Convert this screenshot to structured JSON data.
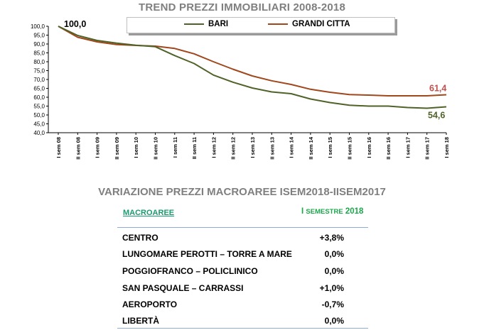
{
  "chart_data": {
    "type": "line",
    "title": "TREND PREZZI IMMOBILIARI 2008-2018",
    "categories": [
      "I sem 08",
      "II sem 08",
      "I sem 09",
      "II sem 09",
      "I sem 10",
      "II sem 10",
      "I sem 11",
      "II sem 11",
      "I sem 12",
      "II sem 12",
      "I sem 13",
      "II sem 13",
      "I sem 14",
      "II sem 14",
      "I sem 15",
      "II sem 15",
      "I sem 16",
      "II sem 16",
      "I sem 17",
      "II sem 17",
      "I sem 18"
    ],
    "series": [
      {
        "name": "BARI",
        "color": "#4f6228",
        "values": [
          100.0,
          94.8,
          92.0,
          90.5,
          89.3,
          88.5,
          83.5,
          79.0,
          72.5,
          68.5,
          65.2,
          63.0,
          62.0,
          59.0,
          57.0,
          55.5,
          55.0,
          55.0,
          54.2,
          53.8,
          54.6
        ]
      },
      {
        "name": "GRANDI CITTA",
        "color": "#a0471c",
        "values": [
          100.0,
          93.8,
          91.2,
          89.7,
          89.2,
          88.8,
          87.5,
          84.5,
          80.0,
          75.8,
          72.0,
          69.3,
          67.2,
          64.5,
          62.8,
          61.5,
          61.2,
          60.8,
          60.8,
          60.8,
          61.4
        ]
      }
    ],
    "ylim": [
      40.0,
      100.0
    ],
    "yticks": [
      "100,0",
      "95,0",
      "90,0",
      "85,0",
      "80,0",
      "75,0",
      "70,0",
      "65,0",
      "60,0",
      "55,0",
      "50,0",
      "45,0",
      "40,0"
    ],
    "annotations": [
      {
        "text": "100,0",
        "series": "start",
        "color": "#000000"
      },
      {
        "text": "61,4",
        "series": "GRANDI CITTA",
        "color": "#c0504d"
      },
      {
        "text": "54,6",
        "series": "BARI",
        "color": "#4f6228"
      }
    ],
    "legend_position": "top"
  },
  "table": {
    "title": "VARIAZIONE PREZZI MACROAREE ISEM2018-IISEM2017",
    "header_label": "MACROAREE",
    "header_value_prefix": "I ",
    "header_value_small": "SEMESTRE",
    "header_value_suffix": " 2018",
    "rows": [
      {
        "label": "CENTRO",
        "value": "+3,8%"
      },
      {
        "label": "LUNGOMARE PEROTTI – TORRE A MARE",
        "value": "0,0%"
      },
      {
        "label": "POGGIOFRANCO – POLICLINICO",
        "value": "0,0%"
      },
      {
        "label": "SAN PASQUALE – CARRASSI",
        "value": "+1,0%"
      },
      {
        "label": "AEROPORTO",
        "value": "-0,7%"
      },
      {
        "label": "LIBERTÀ",
        "value": "0,0%"
      }
    ]
  }
}
